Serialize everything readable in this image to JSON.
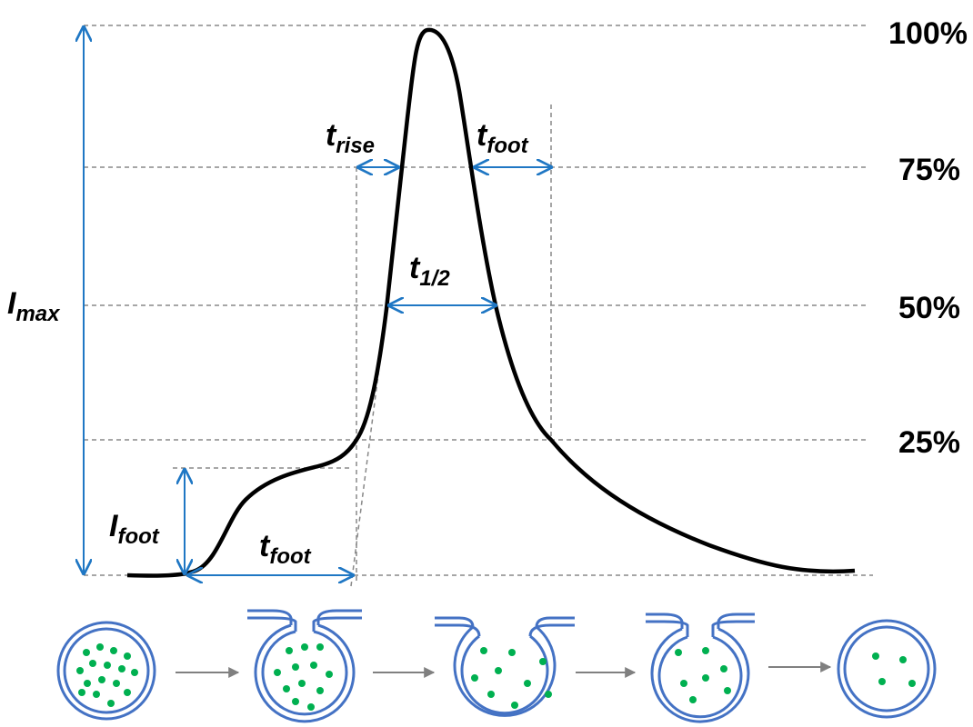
{
  "levels": [
    "100%",
    "75%",
    "50%",
    "25%"
  ],
  "labels": {
    "i_max": {
      "main": "I",
      "sub": "max"
    },
    "t_rise": {
      "main": "t",
      "sub": "rise"
    },
    "t_foot_top": {
      "main": "t",
      "sub": "foot"
    },
    "t_half": {
      "main": "t",
      "sub": "1/2"
    },
    "i_foot": {
      "main": "I",
      "sub": "foot"
    },
    "t_foot_bottom": {
      "main": "t",
      "sub": "foot"
    }
  }
}
